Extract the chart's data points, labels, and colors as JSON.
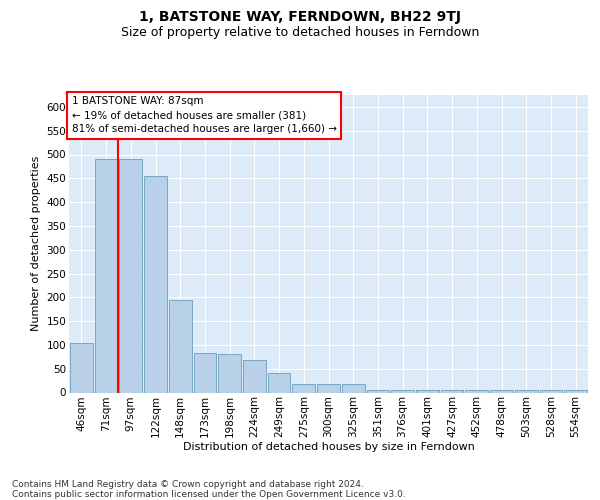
{
  "title": "1, BATSTONE WAY, FERNDOWN, BH22 9TJ",
  "subtitle": "Size of property relative to detached houses in Ferndown",
  "xlabel": "Distribution of detached houses by size in Ferndown",
  "ylabel": "Number of detached properties",
  "categories": [
    "46sqm",
    "71sqm",
    "97sqm",
    "122sqm",
    "148sqm",
    "173sqm",
    "198sqm",
    "224sqm",
    "249sqm",
    "275sqm",
    "300sqm",
    "325sqm",
    "351sqm",
    "376sqm",
    "401sqm",
    "427sqm",
    "452sqm",
    "478sqm",
    "503sqm",
    "528sqm",
    "554sqm"
  ],
  "values": [
    103,
    490,
    490,
    455,
    195,
    83,
    80,
    68,
    40,
    18,
    18,
    18,
    5,
    5,
    5,
    5,
    5,
    5,
    5,
    5,
    5
  ],
  "bar_color": "#b8d0e8",
  "bar_edge_color": "#6a9ec0",
  "annotation_box_text": "1 BATSTONE WAY: 87sqm\n← 19% of detached houses are smaller (381)\n81% of semi-detached houses are larger (1,660) →",
  "vline_color": "red",
  "vline_x": 1.5,
  "ylim": [
    0,
    625
  ],
  "yticks": [
    0,
    50,
    100,
    150,
    200,
    250,
    300,
    350,
    400,
    450,
    500,
    550,
    600
  ],
  "bg_color": "#ddeaf7",
  "grid_color": "white",
  "title_fontsize": 10,
  "subtitle_fontsize": 9,
  "label_fontsize": 8,
  "tick_fontsize": 7.5,
  "ann_fontsize": 7.5,
  "footer_fontsize": 6.5,
  "footer": "Contains HM Land Registry data © Crown copyright and database right 2024.\nContains public sector information licensed under the Open Government Licence v3.0."
}
